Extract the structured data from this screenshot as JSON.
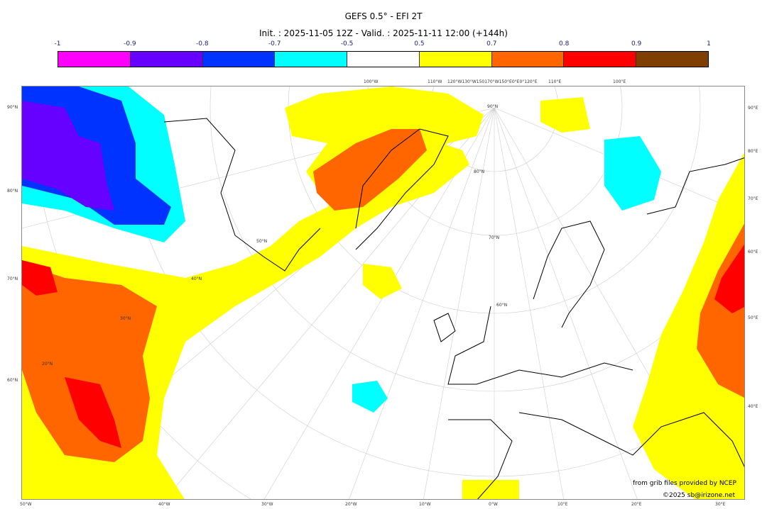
{
  "title": "GEFS 0.5° - EFI 2T",
  "subtitle": "Init. : 2025-11-05 12Z - Valid. : 2025-11-11 12:00 (+144h)",
  "colorbar": {
    "ticks": [
      "-1",
      "-0.9",
      "-0.8",
      "-0.7",
      "-0.5",
      "0.5",
      "0.7",
      "0.8",
      "0.9",
      "1"
    ],
    "colors": [
      "#ff00ff",
      "#6600ff",
      "#0033ff",
      "#00ffff",
      "#ffffff",
      "#ffff00",
      "#ff6600",
      "#ff0000",
      "#7f3f00"
    ]
  },
  "map": {
    "left_labels": [
      "90°N",
      "80°N",
      "70°N",
      "60°N"
    ],
    "right_labels": [
      "90°E",
      "80°E",
      "70°E",
      "60°E",
      "50°E",
      "40°E"
    ],
    "bottom_labels": [
      "50°W",
      "40°W",
      "30°W",
      "20°W",
      "10°W",
      "0°W",
      "10°E",
      "20°E",
      "30°E"
    ],
    "top_labels": [
      "100°W",
      "110°W",
      "120°W130°W150170°W150°E0°E0°120°E",
      "110°E",
      "100°E"
    ],
    "inner_labels": [
      "90°N",
      "80°N",
      "70°N",
      "60°N",
      "50°N",
      "40°N",
      "30°N",
      "20°N"
    ]
  },
  "credits": [
    "from grib files provided by NCEP",
    "©2025 sb@irizone.net"
  ]
}
